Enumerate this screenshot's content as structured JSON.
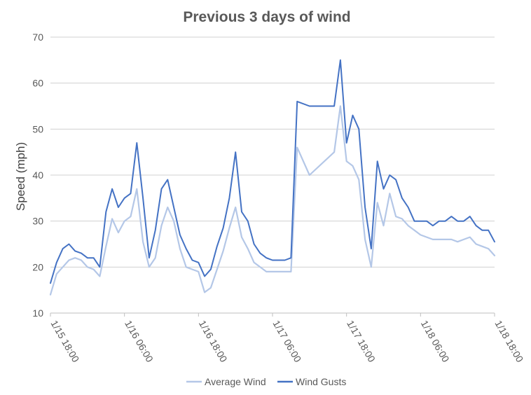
{
  "chart_data": {
    "type": "line",
    "title": "Previous 3 days of wind",
    "xlabel": "",
    "ylabel": "Speed (mph)",
    "ylim": [
      10,
      70
    ],
    "yticks": [
      10,
      20,
      30,
      40,
      50,
      60,
      70
    ],
    "xlim": [
      "1/15 18:00",
      "1/18 18:00"
    ],
    "xtick_labels": [
      "1/15 18:00",
      "1/16 06:00",
      "1/16 18:00",
      "1/17 06:00",
      "1/17 18:00",
      "1/18 06:00",
      "1/18 18:00"
    ],
    "grid": "horizontal",
    "legend_position": "bottom",
    "x_hours": [
      0,
      1,
      2,
      3,
      4,
      5,
      6,
      7,
      8,
      9,
      10,
      11,
      12,
      13,
      14,
      15,
      16,
      17,
      18,
      19,
      20,
      21,
      22,
      23,
      24,
      25,
      26,
      27,
      28,
      29,
      30,
      31,
      32,
      33,
      34,
      35,
      36,
      37,
      38,
      39,
      40,
      41,
      42,
      43,
      44,
      45,
      46,
      47,
      48,
      49,
      50,
      51,
      52,
      53,
      54,
      55,
      56,
      57,
      58,
      59,
      60,
      61,
      62,
      63,
      64,
      65,
      66,
      67,
      68,
      69,
      70,
      71,
      72
    ],
    "series": [
      {
        "name": "Average Wind",
        "color": "#b4c7e7",
        "values": [
          14,
          18.5,
          20,
          21.5,
          22,
          21.5,
          20,
          19.5,
          18,
          24.5,
          30.5,
          27.5,
          30,
          31,
          37,
          25.5,
          20,
          22,
          29,
          33,
          30,
          24,
          20,
          19.5,
          19,
          14.5,
          15.5,
          19.5,
          23.5,
          28.5,
          33,
          26.5,
          24,
          21,
          20,
          19,
          19,
          19,
          19,
          19,
          46,
          null,
          40,
          null,
          null,
          null,
          45,
          55,
          43,
          42,
          39,
          26,
          20,
          34,
          29,
          36,
          31,
          30.5,
          29,
          28,
          27,
          26.5,
          26,
          26,
          26,
          26,
          25.5,
          26,
          26.5,
          25,
          24.5,
          24,
          22.5
        ]
      },
      {
        "name": "Wind Gusts",
        "color": "#4472c4",
        "values": [
          16.5,
          21,
          24,
          25,
          23.5,
          23,
          22,
          22,
          20,
          32,
          37,
          33,
          35,
          36,
          47,
          35,
          22,
          28,
          37,
          39,
          33,
          27,
          24,
          21.5,
          21,
          18,
          19.5,
          24.5,
          28.5,
          35,
          45,
          32,
          30,
          25,
          23,
          22,
          21.5,
          21.5,
          21.5,
          22,
          56,
          null,
          55,
          null,
          null,
          null,
          55,
          65,
          47,
          53,
          50,
          33,
          24,
          43,
          37,
          40,
          39,
          35,
          33,
          30,
          30,
          30,
          29,
          30,
          30,
          31,
          30,
          30,
          31,
          29,
          28,
          28,
          25.5
        ]
      }
    ]
  }
}
